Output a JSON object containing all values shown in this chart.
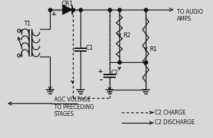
{
  "bg_color": "#d8d8d8",
  "line_color": "#111111",
  "label_T1": "T1",
  "label_CR1": "CR1",
  "label_C1": "C1",
  "label_C2": "C2",
  "label_R1": "R1",
  "label_R2": "R2",
  "label_audio": "TO AUDIO\nAMPS",
  "label_agc_v": "AGC VOLTAGE",
  "label_agc_s": "TO PRECEDING\nSTAGES",
  "label_c2charge": "C2 CHARGE",
  "label_c2discharge": "C2 DISCHARGE",
  "plus": "+",
  "minus": "-"
}
